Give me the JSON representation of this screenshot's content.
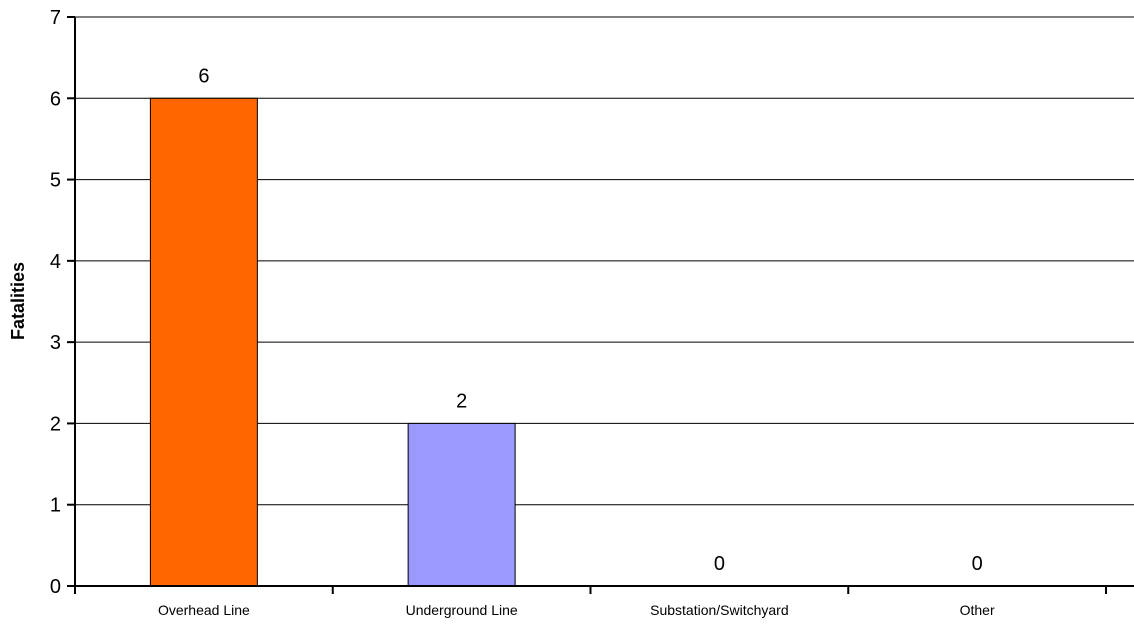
{
  "chart_data": {
    "type": "bar",
    "title": "",
    "xlabel": "",
    "ylabel": "Fatalities",
    "ylim": [
      0,
      7
    ],
    "yticks": [
      0,
      1,
      2,
      3,
      4,
      5,
      6,
      7
    ],
    "grid": true,
    "categories": [
      "Overhead Line",
      "Underground Line",
      "Substation/Switchyard",
      "Other"
    ],
    "values": [
      6,
      2,
      0,
      0
    ],
    "data_labels": [
      "6",
      "2",
      "0",
      "0"
    ],
    "colors": [
      "#ff6600",
      "#9999ff",
      "#ff6600",
      "#ff6600"
    ]
  }
}
